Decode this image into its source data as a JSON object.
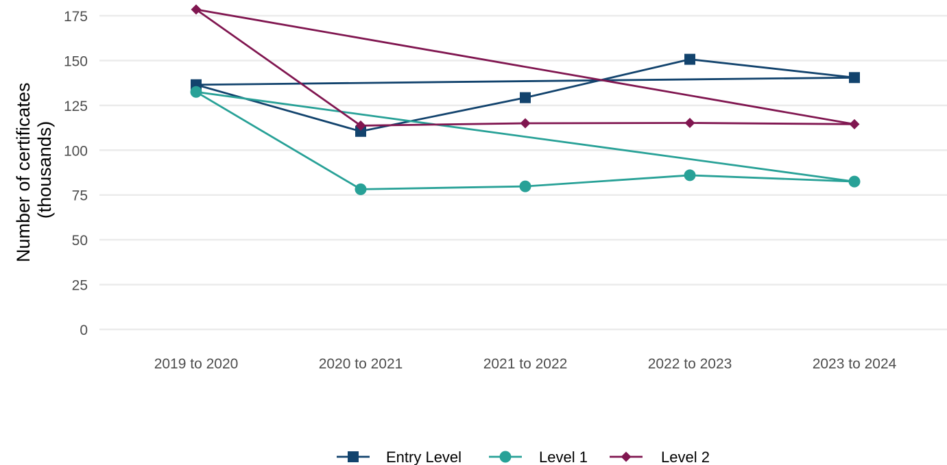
{
  "chart_data": {
    "type": "line",
    "categories": [
      "2019 to 2020",
      "2020 to 2021",
      "2021 to 2022",
      "2022 to 2023",
      "2023 to 2024"
    ],
    "ylabel_lines": [
      "Number of certificates",
      "(thousands)"
    ],
    "xlabel": "",
    "ylim": [
      0,
      175
    ],
    "yticks": [
      0,
      25,
      50,
      75,
      100,
      125,
      150,
      175
    ],
    "grid": true,
    "legend_position": "bottom",
    "series": [
      {
        "name": "Entry Level",
        "color": "#12436d",
        "marker": "square",
        "values": [
          136.5,
          110.5,
          129.3,
          150.7,
          140.5
        ]
      },
      {
        "name": "Level 1",
        "color": "#28a197",
        "marker": "circle",
        "values": [
          132.5,
          78.2,
          79.8,
          86.0,
          82.5
        ]
      },
      {
        "name": "Level 2",
        "color": "#801650",
        "marker": "diamond",
        "values": [
          178.5,
          113.7,
          115.0,
          115.2,
          114.5
        ]
      }
    ]
  }
}
